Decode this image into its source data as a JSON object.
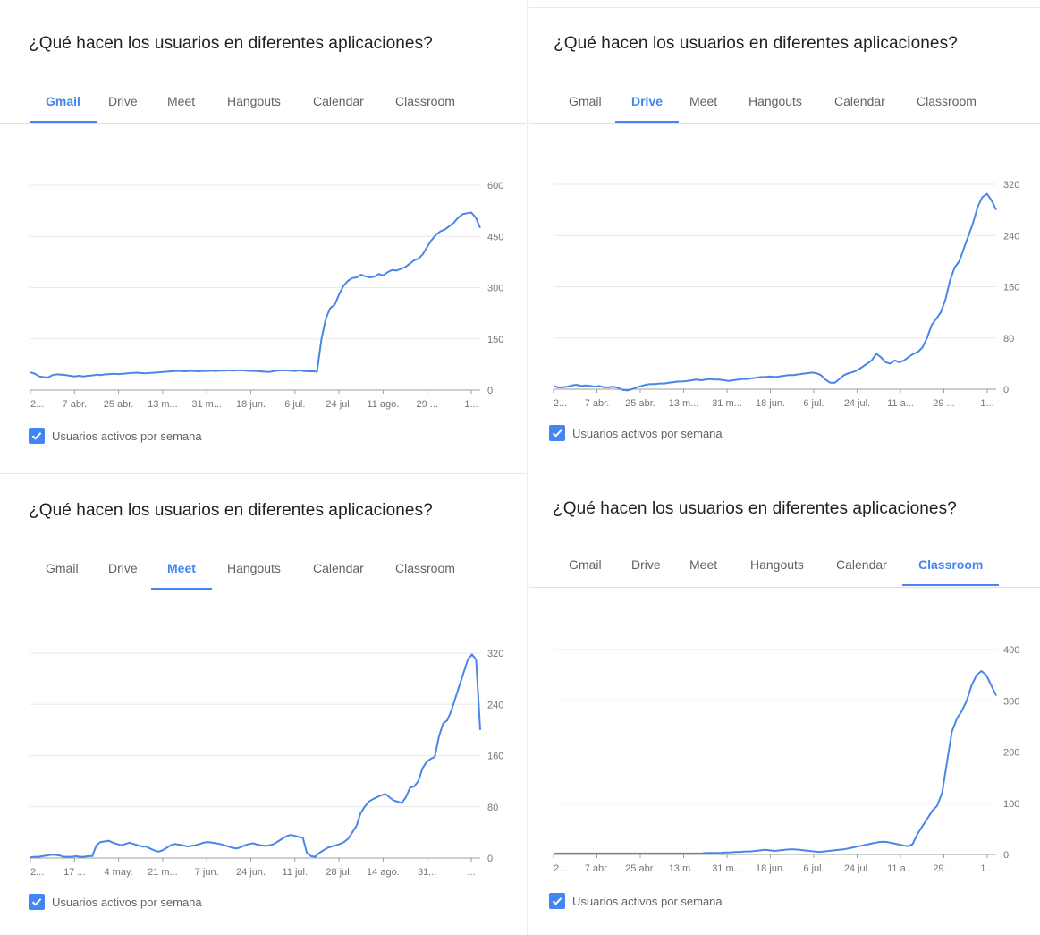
{
  "panels": [
    {
      "title": "¿Qué hacen los usuarios en diferentes aplicaciones?",
      "tabs": [
        "Gmail",
        "Drive",
        "Meet",
        "Hangouts",
        "Calendar",
        "Classroom"
      ],
      "active_tab": 0,
      "legend": "Usuarios activos por semana"
    },
    {
      "title": "¿Qué hacen los usuarios en diferentes aplicaciones?",
      "tabs": [
        "Gmail",
        "Drive",
        "Meet",
        "Hangouts",
        "Calendar",
        "Classroom"
      ],
      "active_tab": 1,
      "legend": "Usuarios activos por semana"
    },
    {
      "title": "¿Qué hacen los usuarios en diferentes aplicaciones?",
      "tabs": [
        "Gmail",
        "Drive",
        "Meet",
        "Hangouts",
        "Calendar",
        "Classroom"
      ],
      "active_tab": 2,
      "legend": "Usuarios activos por semana"
    },
    {
      "title": "¿Qué hacen los usuarios en diferentes aplicaciones?",
      "tabs": [
        "Gmail",
        "Drive",
        "Meet",
        "Hangouts",
        "Calendar",
        "Classroom"
      ],
      "active_tab": 5,
      "legend": "Usuarios activos por semana"
    }
  ],
  "colors": {
    "accent": "#4285f4",
    "line": "#4a86e8",
    "grid": "#e8e8e8",
    "axis_text": "#757575"
  },
  "chart_data": [
    {
      "type": "line",
      "grid": true,
      "ylim": [
        0,
        600
      ],
      "yticks": [
        0,
        150,
        300,
        450,
        600
      ],
      "x_ticks": [
        "2...",
        "7 abr.",
        "25 abr.",
        "13 m...",
        "31 m...",
        "18 jun.",
        "6 jul.",
        "24 jul.",
        "11 ago.",
        "29 ...",
        "1..."
      ],
      "series": [
        {
          "values": [
            52,
            48,
            40,
            38,
            37,
            44,
            46,
            45,
            44,
            42,
            40,
            42,
            40,
            42,
            43,
            45,
            44,
            46,
            47,
            48,
            47,
            48,
            49,
            50,
            51,
            50,
            49,
            50,
            51,
            52,
            53,
            54,
            55,
            56,
            56,
            55,
            56,
            56,
            55,
            56,
            56,
            57,
            56,
            57,
            57,
            58,
            57,
            58,
            58,
            57,
            56,
            56,
            55,
            54,
            53,
            55,
            57,
            58,
            58,
            57,
            56,
            58,
            56,
            55,
            55,
            54,
            150,
            210,
            240,
            250,
            280,
            305,
            320,
            328,
            330,
            338,
            333,
            330,
            332,
            340,
            336,
            345,
            352,
            350,
            355,
            360,
            370,
            380,
            385,
            398,
            420,
            440,
            455,
            465,
            470,
            480,
            490,
            505,
            515,
            518,
            520,
            505,
            475
          ]
        }
      ]
    },
    {
      "type": "line",
      "grid": true,
      "ylim": [
        0,
        320
      ],
      "yticks": [
        0,
        80,
        160,
        240,
        320
      ],
      "x_ticks": [
        "2...",
        "7 abr.",
        "25 abr.",
        "13 m...",
        "31 m...",
        "18 jun.",
        "6 jul.",
        "24 jul.",
        "11 a...",
        "29 ...",
        "1..."
      ],
      "series": [
        {
          "values": [
            5,
            3,
            3,
            4,
            6,
            7,
            5,
            6,
            5,
            4,
            5,
            3,
            3,
            4,
            2,
            -1,
            -2,
            0,
            3,
            5,
            7,
            8,
            8,
            9,
            9,
            10,
            11,
            12,
            12,
            13,
            14,
            15,
            14,
            15,
            16,
            15,
            15,
            14,
            13,
            14,
            15,
            16,
            16,
            17,
            18,
            19,
            19,
            20,
            19,
            20,
            21,
            22,
            22,
            23,
            24,
            25,
            26,
            25,
            22,
            15,
            10,
            10,
            16,
            22,
            25,
            27,
            30,
            35,
            40,
            45,
            55,
            50,
            42,
            40,
            45,
            42,
            45,
            50,
            55,
            58,
            65,
            80,
            100,
            110,
            120,
            140,
            170,
            190,
            200,
            220,
            240,
            260,
            285,
            300,
            305,
            295,
            280
          ]
        }
      ]
    },
    {
      "type": "line",
      "grid": true,
      "ylim": [
        0,
        320
      ],
      "yticks": [
        0,
        80,
        160,
        240,
        320
      ],
      "x_ticks": [
        "2...",
        "17 ...",
        "4 may.",
        "21 m...",
        "7 jun.",
        "24 jun.",
        "11 jul.",
        "28 jul.",
        "14 ago.",
        "31...",
        "..."
      ],
      "series": [
        {
          "values": [
            1,
            2,
            2,
            3,
            4,
            5,
            5,
            4,
            2,
            2,
            2,
            3,
            2,
            2,
            3,
            3,
            20,
            25,
            26,
            27,
            24,
            22,
            20,
            22,
            24,
            22,
            20,
            18,
            18,
            15,
            12,
            10,
            12,
            16,
            20,
            22,
            21,
            20,
            18,
            19,
            20,
            22,
            24,
            25,
            24,
            23,
            22,
            20,
            18,
            16,
            15,
            17,
            20,
            22,
            23,
            21,
            20,
            19,
            20,
            22,
            26,
            30,
            34,
            36,
            35,
            33,
            32,
            8,
            3,
            2,
            8,
            12,
            16,
            18,
            20,
            22,
            25,
            30,
            40,
            50,
            70,
            80,
            88,
            92,
            95,
            98,
            100,
            95,
            90,
            88,
            86,
            95,
            110,
            112,
            120,
            140,
            150,
            155,
            158,
            190,
            210,
            215,
            230,
            250,
            270,
            290,
            310,
            318,
            310,
            200
          ]
        }
      ]
    },
    {
      "type": "line",
      "grid": true,
      "ylim": [
        0,
        400
      ],
      "yticks": [
        0,
        100,
        200,
        300,
        400
      ],
      "x_ticks": [
        "2...",
        "7 abr.",
        "25 abr.",
        "13 m...",
        "31 m...",
        "18 jun.",
        "6 jul.",
        "24 jul.",
        "11 a...",
        "29 ...",
        "1..."
      ],
      "series": [
        {
          "values": [
            2,
            2,
            2,
            2,
            2,
            2,
            2,
            2,
            2,
            2,
            2,
            2,
            2,
            2,
            2,
            2,
            2,
            2,
            2,
            2,
            2,
            2,
            2,
            2,
            2,
            2,
            2,
            2,
            2,
            2,
            2,
            3,
            3,
            3,
            3,
            4,
            4,
            5,
            5,
            6,
            6,
            7,
            8,
            9,
            8,
            7,
            8,
            9,
            10,
            10,
            9,
            8,
            7,
            6,
            5,
            6,
            7,
            8,
            9,
            10,
            12,
            14,
            16,
            18,
            20,
            22,
            24,
            25,
            24,
            22,
            20,
            18,
            16,
            20,
            40,
            55,
            70,
            85,
            95,
            120,
            180,
            240,
            265,
            280,
            300,
            330,
            350,
            358,
            350,
            330,
            310
          ]
        }
      ]
    }
  ]
}
